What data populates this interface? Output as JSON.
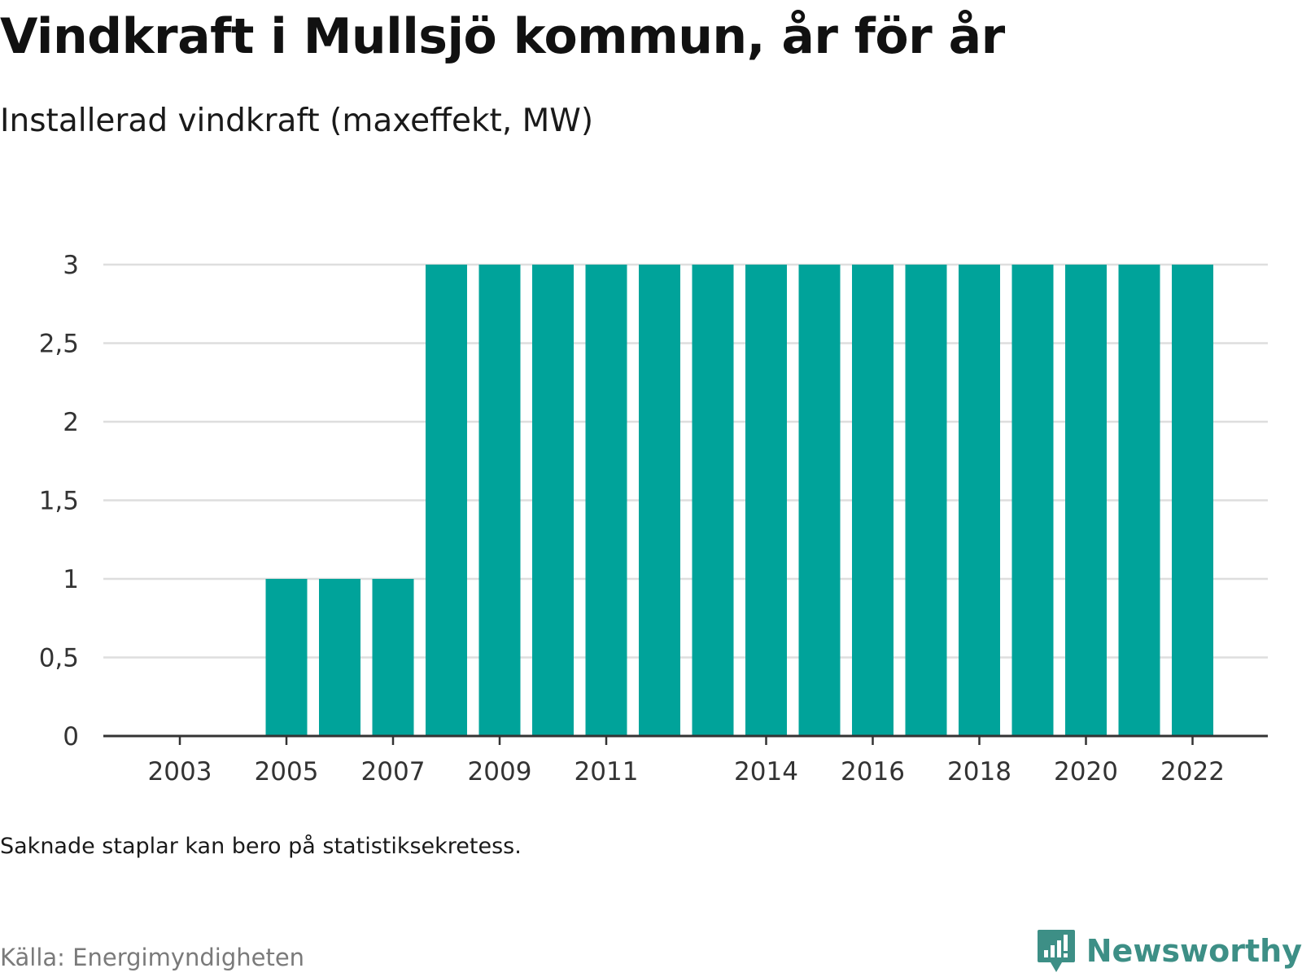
{
  "header": {
    "title": "Vindkraft i Mullsjö kommun, år för år",
    "subtitle": "Installerad vindkraft (maxeffekt, MW)"
  },
  "footer": {
    "note": "Saknade staplar kan bero på statistiksekretess.",
    "source": "Källa: Energimyndigheten",
    "brand": "Newsworthy"
  },
  "colors": {
    "bar": "#00a39a",
    "grid": "#dedede",
    "axis": "#333333",
    "brand": "#3d8f86"
  },
  "chart_data": {
    "type": "bar",
    "title": "Vindkraft i Mullsjö kommun, år för år",
    "subtitle": "Installerad vindkraft (maxeffekt, MW)",
    "categories": [
      2002,
      2003,
      2004,
      2005,
      2006,
      2007,
      2008,
      2009,
      2010,
      2011,
      2012,
      2013,
      2014,
      2015,
      2016,
      2017,
      2018,
      2019,
      2020,
      2021,
      2022
    ],
    "values": [
      null,
      null,
      null,
      1,
      1,
      1,
      3,
      3,
      3,
      3,
      3,
      3,
      3,
      3,
      3,
      3,
      3,
      3,
      3,
      3,
      3
    ],
    "x_tick_labels": [
      "2003",
      "2005",
      "2007",
      "2009",
      "2011",
      "2014",
      "2016",
      "2018",
      "2020",
      "2022"
    ],
    "y_ticks": [
      0,
      0.5,
      1,
      1.5,
      2,
      2.5,
      3
    ],
    "y_tick_labels": [
      "0",
      "0,5",
      "1",
      "1,5",
      "2",
      "2,5",
      "3"
    ],
    "ylim": [
      0,
      3
    ],
    "xlabel": "",
    "ylabel": "",
    "grid": true,
    "legend": "none"
  }
}
